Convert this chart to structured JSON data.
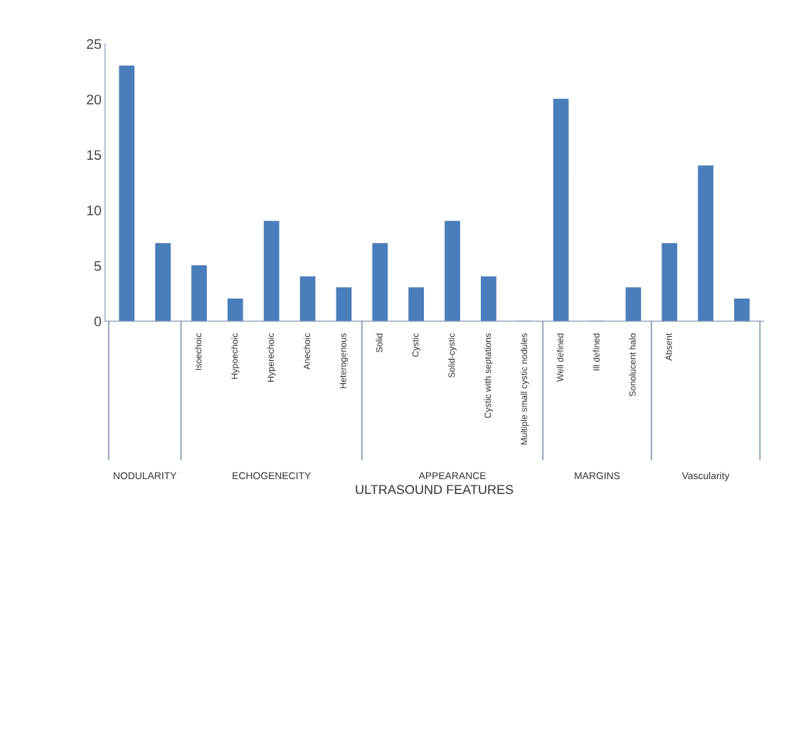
{
  "chart_data": {
    "type": "bar",
    "xlabel": "ULTRASOUND FEATURES",
    "categories": [
      null,
      null,
      "Isoechoic",
      "Hypoechoic",
      "Hyperechoic",
      "Anechoic",
      "Heterogenous",
      "Solid",
      "Cystic",
      "Solid-cystic",
      "Cystic with septations",
      "Multiple small cystic nodules",
      "Well defined",
      "Ill defined",
      "Sonolucent halo",
      "Absent",
      null,
      null
    ],
    "values": [
      23,
      7,
      5,
      2,
      9,
      4,
      3,
      7,
      3,
      9,
      4,
      0,
      20,
      0,
      3,
      7,
      14,
      2
    ],
    "color": "#4a7ebb",
    "ylim": [
      0,
      25
    ],
    "yticks": [
      0,
      5,
      10,
      15,
      20,
      25
    ],
    "grid": false,
    "legend": false,
    "annotations": [
      "NODULARITY",
      "ECHOGENECITY",
      "APPEARANCE",
      "MARGINS",
      "Vascularity"
    ]
  }
}
